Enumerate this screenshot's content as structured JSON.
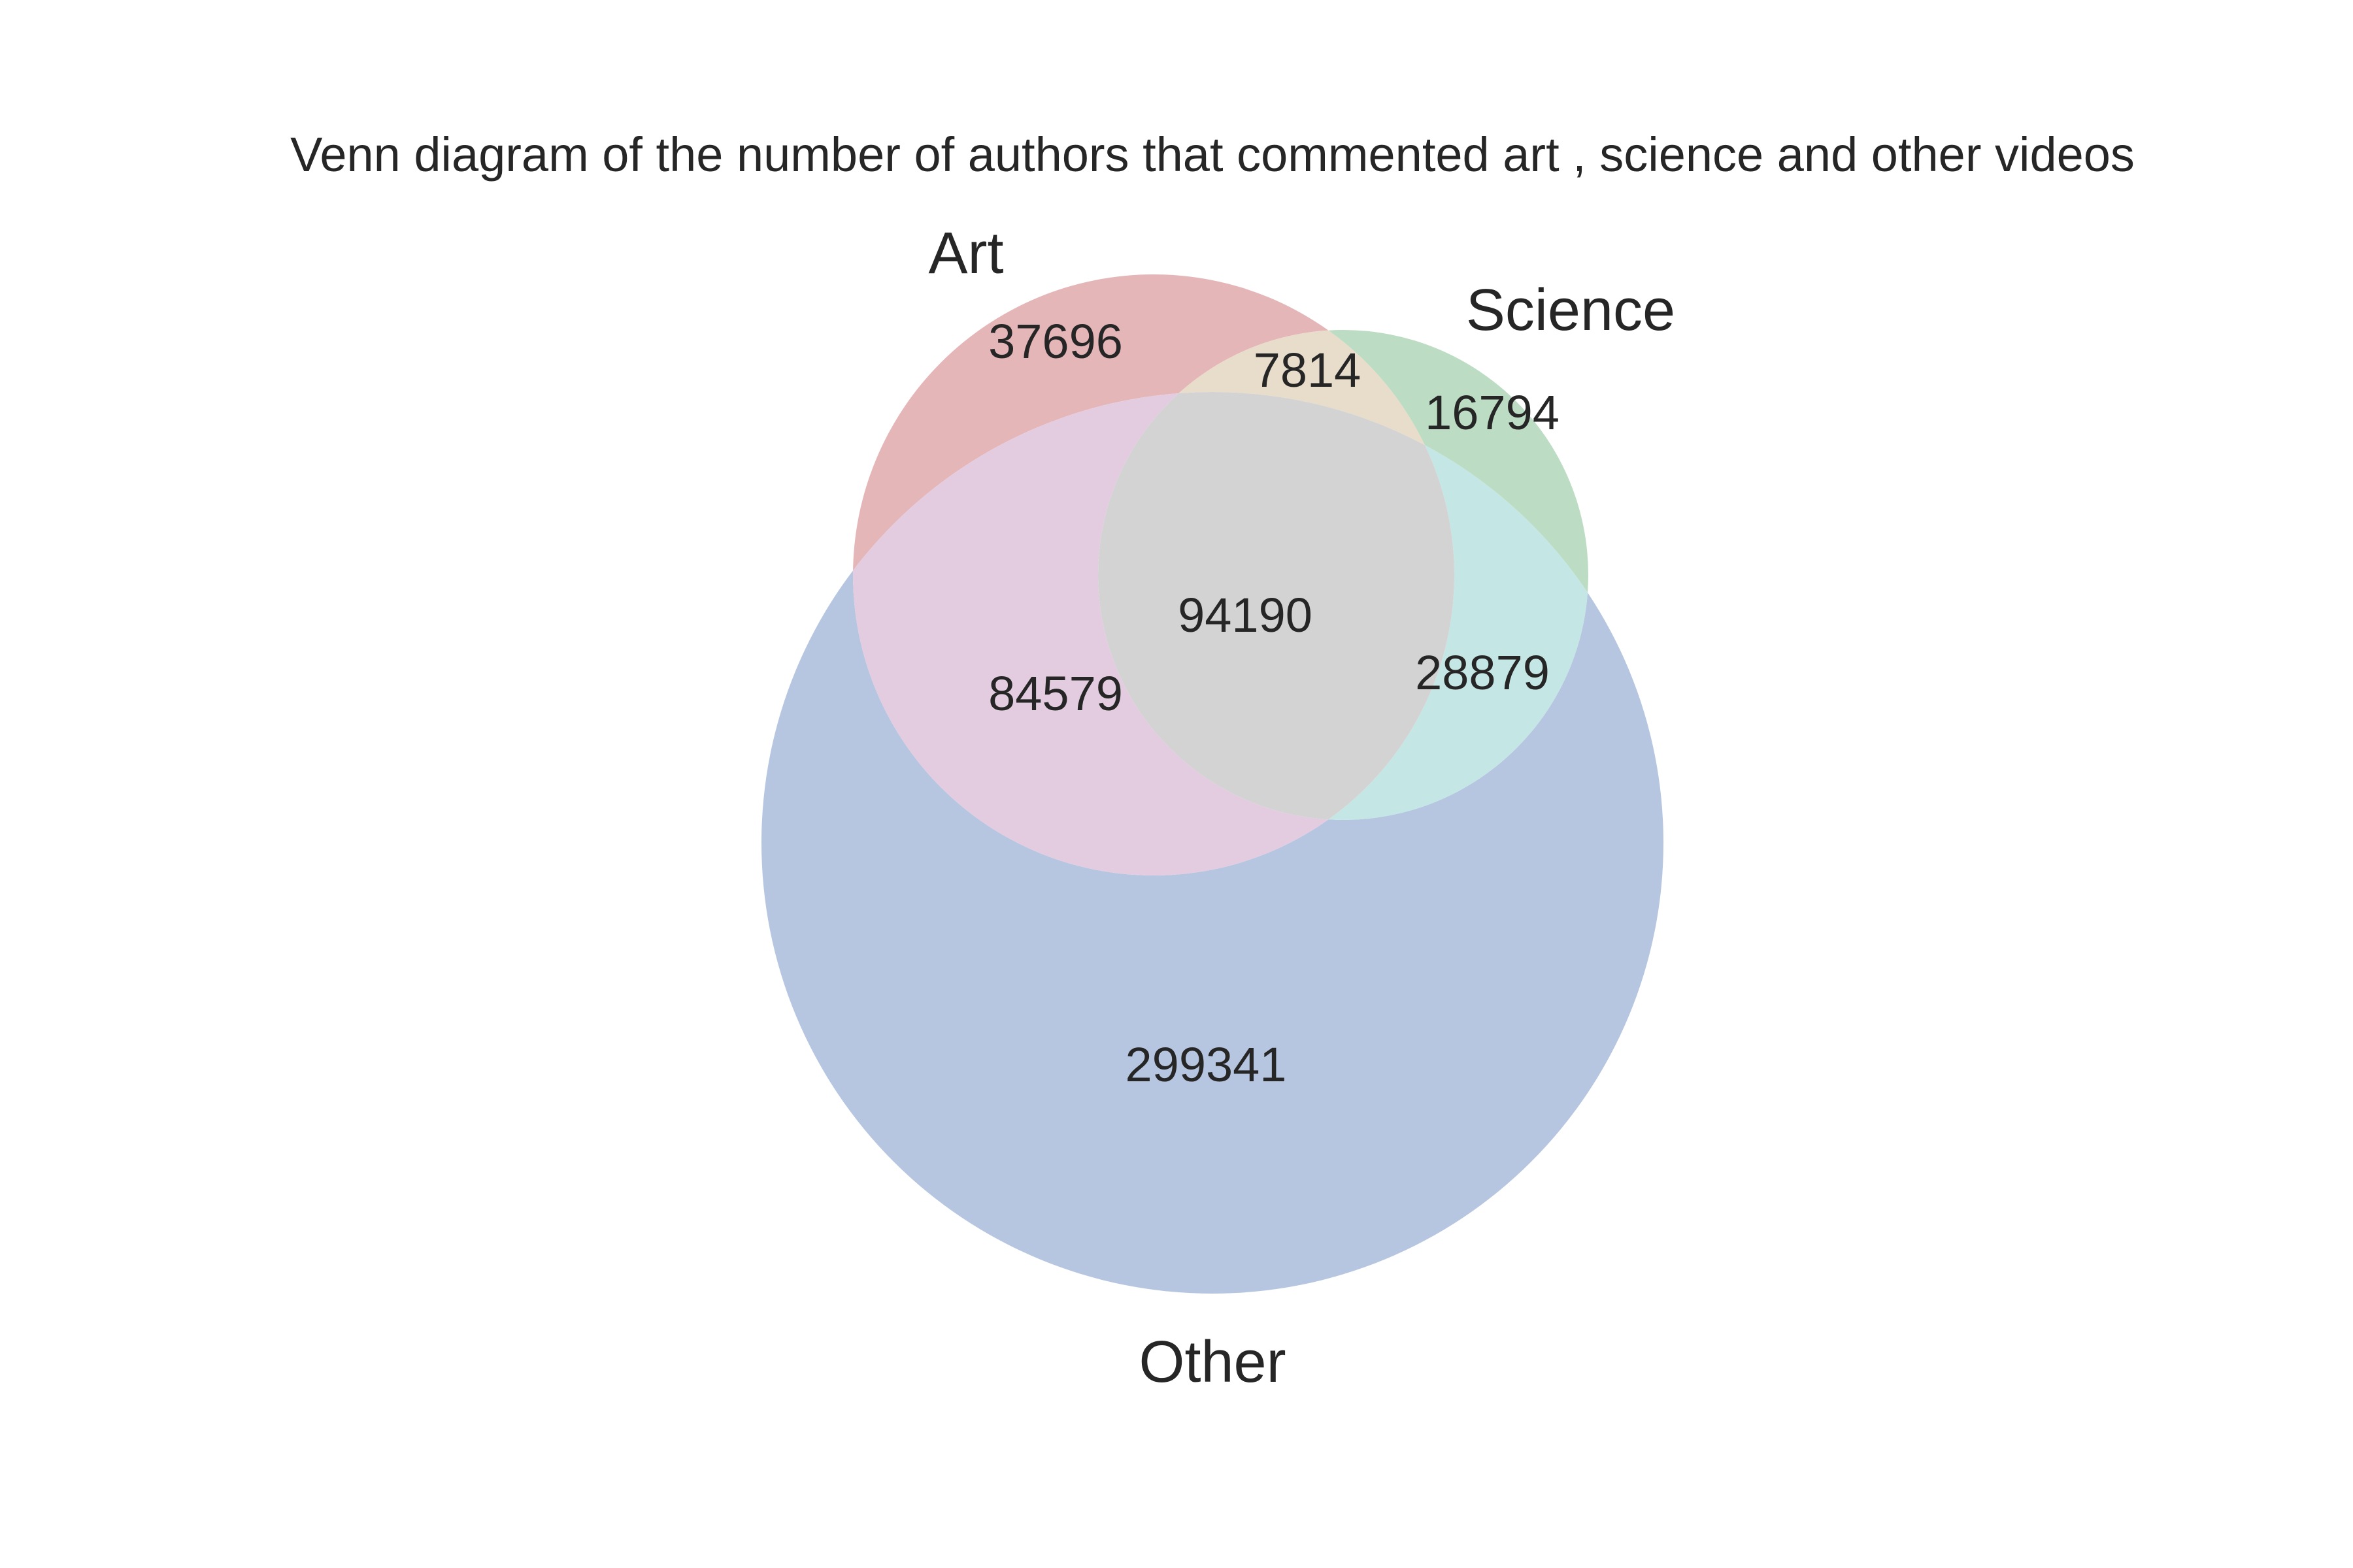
{
  "title": "Venn diagram of the number of authors that commented art , science and other videos",
  "sets": {
    "art": {
      "label": "Art",
      "color": "#c44e52"
    },
    "science": {
      "label": "Science",
      "color": "#55a868"
    },
    "other": {
      "label": "Other",
      "color": "#4c72b0"
    }
  },
  "regions": {
    "art_only": "37696",
    "art_science": "7814",
    "science_only": "16794",
    "all_three": "94190",
    "art_other": "84579",
    "science_other": "28879",
    "other_only": "299341"
  },
  "region_colors": {
    "art_only": "#e5b6b8",
    "art_science": "#e8dccb",
    "science_only": "#bcdcc3",
    "all_three": "#d3d3d3",
    "art_other": "#e3cce0",
    "science_other": "#c4e6e5",
    "other_only": "#b6c6e0"
  }
}
